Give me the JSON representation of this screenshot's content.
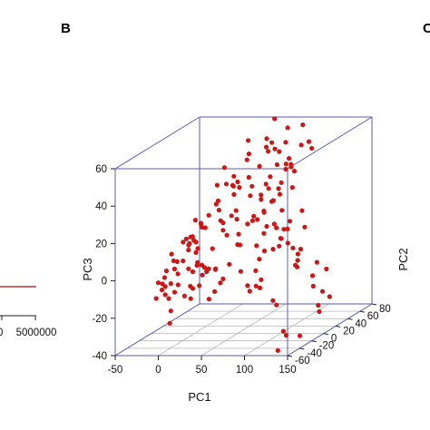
{
  "panels": {
    "left_letter": "",
    "main_letter": "B",
    "right_letter": "C"
  },
  "left_fragment": {
    "tick_labels": [
      "0",
      "5000000"
    ],
    "line_color": "#b03030"
  },
  "chart_data": {
    "type": "scatter",
    "projection": "3d",
    "xlabel": "PC1",
    "ylabel": "PC2",
    "zlabel": "PC3",
    "xlim": [
      -50,
      150
    ],
    "ylim": [
      -60,
      80
    ],
    "zlim": [
      -40,
      60
    ],
    "x_ticks": [
      "-50",
      "0",
      "50",
      "100",
      "150"
    ],
    "y_ticks": [
      "-60",
      "-40",
      "-20",
      "0",
      "20",
      "40",
      "60",
      "80"
    ],
    "z_ticks": [
      "-40",
      "-20",
      "0",
      "20",
      "40",
      "60"
    ],
    "grid": "floor",
    "point_color": "#d01515",
    "points": [
      [
        45,
        58,
        46
      ],
      [
        33,
        42,
        55
      ],
      [
        40,
        33,
        37
      ],
      [
        42,
        48,
        40
      ],
      [
        44,
        57,
        53
      ],
      [
        41,
        34,
        27
      ],
      [
        50,
        39,
        24
      ],
      [
        52,
        36,
        27
      ],
      [
        38,
        16,
        18
      ],
      [
        40,
        16,
        10
      ],
      [
        49,
        18,
        15
      ],
      [
        48,
        7,
        6
      ],
      [
        33,
        40,
        45
      ],
      [
        32,
        4,
        48
      ],
      [
        30,
        10,
        38
      ],
      [
        24,
        31,
        38
      ],
      [
        32,
        19,
        35
      ],
      [
        22,
        32,
        33
      ],
      [
        25,
        36,
        34
      ],
      [
        25,
        5,
        25
      ],
      [
        21,
        6,
        28
      ],
      [
        30,
        -19,
        27
      ],
      [
        20,
        -27,
        26
      ],
      [
        18,
        -15,
        22
      ],
      [
        14,
        -9,
        20
      ],
      [
        14,
        -2,
        17
      ],
      [
        5,
        -17,
        8
      ],
      [
        20,
        -23,
        10
      ],
      [
        21,
        -31,
        16
      ],
      [
        27,
        -36,
        16
      ],
      [
        22,
        -29,
        9
      ],
      [
        14,
        -15,
        1
      ],
      [
        16,
        7,
        4
      ],
      [
        5,
        -26,
        14
      ],
      [
        -1,
        -12,
        13
      ],
      [
        -3,
        -4,
        9
      ],
      [
        4,
        -12,
        14
      ],
      [
        -2,
        -16,
        2
      ],
      [
        0,
        -33,
        1
      ],
      [
        5,
        -10,
        -5
      ],
      [
        -2,
        -7,
        -4
      ],
      [
        -4,
        -23,
        3
      ],
      [
        -7,
        -28,
        8
      ],
      [
        -6,
        -38,
        1
      ],
      [
        -6,
        -40,
        -7
      ],
      [
        -6,
        -41,
        -2
      ],
      [
        -7,
        -50,
        -3
      ],
      [
        -7,
        -43,
        -5
      ],
      [
        -7,
        -44,
        -8
      ],
      [
        -5,
        -32,
        -7
      ],
      [
        -6,
        -26,
        4
      ],
      [
        -1,
        -26,
        -3
      ],
      [
        -8,
        -52,
        -11
      ],
      [
        -1,
        -47,
        -10
      ],
      [
        6,
        -25,
        -15
      ],
      [
        11,
        8,
        -7
      ],
      [
        4,
        -12,
        -19
      ],
      [
        12,
        -20,
        -12
      ],
      [
        -4,
        -37,
        -14
      ],
      [
        -2,
        -30,
        -12
      ],
      [
        -3,
        -35,
        -21
      ],
      [
        12,
        7,
        -23
      ],
      [
        22,
        2,
        -18
      ],
      [
        -2,
        -38,
        -27
      ],
      [
        19,
        -34,
        -8
      ],
      [
        28,
        -20,
        -3
      ],
      [
        14,
        -12,
        -12
      ],
      [
        19,
        -23,
        1
      ],
      [
        26,
        -24,
        -4
      ],
      [
        34,
        -14,
        -3
      ],
      [
        40,
        -22,
        -1
      ],
      [
        44,
        -5,
        -2
      ],
      [
        53,
        1,
        -7
      ],
      [
        56,
        8,
        -16
      ],
      [
        64,
        17,
        -19
      ],
      [
        62,
        3,
        -18
      ],
      [
        63,
        12,
        -17
      ],
      [
        64,
        19,
        -15
      ],
      [
        62,
        13,
        -9
      ],
      [
        69,
        9,
        -2
      ],
      [
        86,
        32,
        2
      ],
      [
        84,
        24,
        6
      ],
      [
        70,
        16,
        1
      ],
      [
        79,
        30,
        5
      ],
      [
        73,
        26,
        0
      ],
      [
        65,
        10,
        5
      ],
      [
        80,
        40,
        8
      ],
      [
        85,
        19,
        3
      ],
      [
        97,
        33,
        -4
      ],
      [
        98,
        31,
        -7
      ],
      [
        101,
        23,
        -8
      ],
      [
        103,
        23,
        -9
      ],
      [
        80,
        18,
        15
      ],
      [
        87,
        24,
        11
      ],
      [
        94,
        29,
        0
      ],
      [
        98,
        36,
        -2
      ],
      [
        100,
        40,
        9
      ],
      [
        94,
        44,
        17
      ],
      [
        82,
        41,
        12
      ],
      [
        65,
        27,
        12
      ],
      [
        61,
        28,
        20
      ],
      [
        59,
        14,
        20
      ],
      [
        52,
        22,
        16
      ],
      [
        77,
        18,
        27
      ],
      [
        70,
        31,
        25
      ],
      [
        59,
        20,
        17
      ],
      [
        57,
        14,
        36
      ],
      [
        69,
        20,
        36
      ],
      [
        77,
        35,
        19
      ],
      [
        70,
        23,
        33
      ],
      [
        78,
        40,
        40
      ],
      [
        80,
        46,
        40
      ],
      [
        76,
        33,
        28
      ],
      [
        70,
        44,
        32
      ],
      [
        67,
        30,
        38
      ],
      [
        70,
        37,
        43
      ],
      [
        81,
        50,
        37
      ],
      [
        79,
        39,
        43
      ],
      [
        61,
        28,
        8
      ],
      [
        57,
        34,
        18
      ],
      [
        89,
        33,
        44
      ],
      [
        92,
        31,
        32
      ],
      [
        89,
        50,
        51
      ],
      [
        95,
        54,
        52
      ],
      [
        76,
        46,
        61
      ],
      [
        81,
        64,
        59
      ],
      [
        80,
        37,
        55
      ],
      [
        69,
        42,
        49
      ],
      [
        68,
        31,
        56
      ],
      [
        65,
        40,
        67
      ],
      [
        63,
        29,
        54
      ],
      [
        79,
        44,
        45
      ],
      [
        73,
        29,
        53
      ],
      [
        97,
        56,
        48
      ],
      [
        71,
        38,
        30
      ],
      [
        31,
        -5,
        32
      ],
      [
        36,
        -4,
        20
      ],
      [
        43,
        -14,
        18
      ],
      [
        39,
        -2,
        13
      ],
      [
        42,
        9,
        24
      ],
      [
        34,
        23,
        3
      ],
      [
        29,
        2,
        20
      ],
      [
        36,
        10,
        21
      ],
      [
        18,
        12,
        37
      ],
      [
        27,
        27,
        29
      ],
      [
        10,
        -2,
        -3
      ],
      [
        -4,
        -4,
        8
      ],
      [
        -12,
        -10,
        -12
      ],
      [
        38,
        36,
        49
      ],
      [
        34,
        26,
        33
      ],
      [
        72,
        33,
        10
      ],
      [
        116,
        30,
        -15
      ],
      [
        123,
        43,
        -14
      ],
      [
        122,
        38,
        -25
      ],
      [
        117,
        36,
        -9
      ],
      [
        126,
        44,
        -29
      ],
      [
        112,
        37,
        -22
      ],
      [
        115,
        41,
        -33
      ],
      [
        114,
        44,
        -37
      ],
      [
        108,
        -16,
        -46
      ],
      [
        110,
        -5,
        -40
      ],
      [
        106,
        -4,
        -38
      ],
      [
        116,
        9,
        -43
      ],
      [
        96,
        -7,
        -21
      ],
      [
        98,
        -4,
        -24
      ],
      [
        44,
        -20,
        -9
      ],
      [
        32,
        -29,
        1
      ],
      [
        29,
        6,
        -12
      ],
      [
        20,
        -16,
        20
      ],
      [
        16,
        -26,
        17
      ]
    ]
  }
}
